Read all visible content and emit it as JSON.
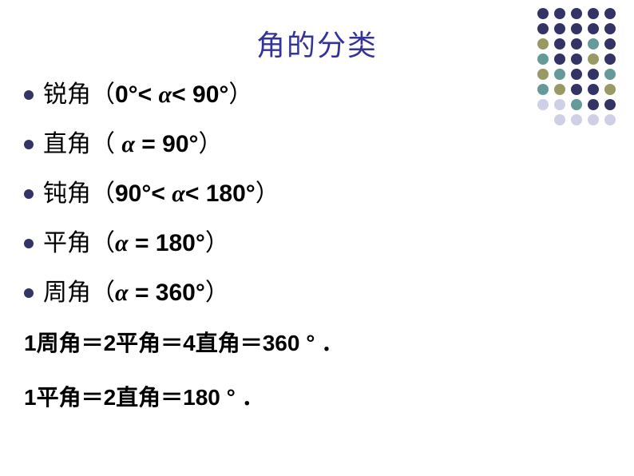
{
  "title": "角的分类",
  "title_color": "#333399",
  "bullet_color": "#333366",
  "items": [
    {
      "label_cn": "锐角",
      "open": "（",
      "part1": "0°<   ",
      "alpha": "α",
      "part2": "<  90°",
      "close": "）"
    },
    {
      "label_cn": "直角",
      "open": "（",
      "part1": " ",
      "alpha": "α",
      "part2": " = 90°",
      "close": "）"
    },
    {
      "label_cn": "钝角",
      "open": "（",
      "part1": "90°<   ",
      "alpha": "α",
      "part2": "<  180°",
      "close": "）"
    },
    {
      "label_cn": "平角",
      "open": "（",
      "part1": "",
      "alpha": "α",
      "part2": "  = 180°",
      "close": "）"
    },
    {
      "label_cn": "周角",
      "open": "（",
      "part1": "",
      "alpha": "α",
      "part2": "  = 360°",
      "close": "）"
    }
  ],
  "footer": [
    "1周角＝2平角＝4直角＝360 ° ．",
    "1平角＝2直角＝180 ° ．"
  ],
  "decoration": {
    "colors": {
      "purple": "#333366",
      "teal": "#669999",
      "olive": "#999966",
      "lightgray": "#cfcfe8"
    },
    "grid": [
      [
        "purple",
        "purple",
        "purple",
        "purple",
        "purple"
      ],
      [
        "purple",
        "purple",
        "purple",
        "purple",
        "purple"
      ],
      [
        "olive",
        "purple",
        "purple",
        "teal",
        "purple"
      ],
      [
        "teal",
        "purple",
        "purple",
        "olive",
        "purple"
      ],
      [
        "olive",
        "teal",
        "purple",
        "purple",
        "teal"
      ],
      [
        "teal",
        "olive",
        "purple",
        "purple",
        "olive"
      ],
      [
        "lightgray",
        "lightgray",
        "teal",
        "purple",
        "purple"
      ],
      [
        "",
        "lightgray",
        "lightgray",
        "lightgray",
        "lightgray"
      ]
    ]
  }
}
